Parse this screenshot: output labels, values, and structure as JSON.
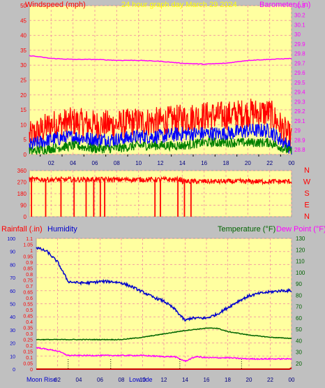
{
  "header": {
    "left_title": "Windspeed (mph)",
    "center_title": "24 hour graph day   March 29 2024",
    "right_title": "Barometer (.in)"
  },
  "colors": {
    "bg": "#c0c0c0",
    "plot_bg": "#ffffa0",
    "grid": "#f4a0a0",
    "wind": "#ff0000",
    "gust_mid": "#0000ff",
    "wind_low": "#008000",
    "barometer": "#ff00ff",
    "humidity": "#0000cc",
    "temperature": "#006400",
    "dewpoint": "#ff00ff",
    "rain": "#cc0000",
    "title_red": "#ff0000",
    "title_yellow": "#ffff00",
    "title_magenta": "#ff00ff",
    "title_blue": "#0000cc",
    "title_green": "#006400"
  },
  "chart_data": [
    {
      "type": "line",
      "name": "wind-barometer",
      "title": "24 hour graph day   March 29 2024",
      "ylabel": "Windspeed (mph)",
      "y2label": "Barometer (.in)",
      "x_ticks": [
        "02",
        "04",
        "06",
        "08",
        "10",
        "12",
        "14",
        "16",
        "18",
        "20",
        "22",
        "00"
      ],
      "ylim": [
        0,
        50
      ],
      "y_ticks": [
        0,
        5,
        10,
        15,
        20,
        25,
        30,
        35,
        40,
        45,
        50
      ],
      "y2lim": [
        28.75,
        30.3
      ],
      "y2_ticks": [
        "28.8",
        "28.9",
        "29",
        "29.1",
        "29.2",
        "29.3",
        "29.4",
        "29.5",
        "29.6",
        "29.7",
        "29.8",
        "29.9",
        "30",
        "30.1",
        "30.2",
        "30.3"
      ],
      "series": [
        {
          "role": "gust-high",
          "hours": [
            0,
            2,
            4,
            6,
            8,
            10,
            12,
            14,
            16,
            18,
            20,
            22,
            24
          ],
          "values": [
            6,
            10,
            11,
            10,
            10,
            11,
            11,
            12,
            13,
            13,
            14,
            14,
            5
          ]
        },
        {
          "role": "gust-mid",
          "hours": [
            0,
            2,
            4,
            6,
            8,
            10,
            12,
            14,
            16,
            18,
            20,
            22,
            24
          ],
          "values": [
            3,
            5,
            6,
            5,
            5,
            6,
            6,
            7,
            7,
            7,
            8,
            8,
            2
          ]
        },
        {
          "role": "wind-low",
          "hours": [
            0,
            2,
            4,
            6,
            8,
            10,
            12,
            14,
            16,
            18,
            20,
            22,
            24
          ],
          "values": [
            1,
            2,
            3,
            2,
            2,
            3,
            3,
            3,
            4,
            4,
            4,
            4,
            1
          ]
        },
        {
          "role": "barometer",
          "hours": [
            0,
            2,
            4,
            6,
            8,
            10,
            12,
            14,
            16,
            18,
            20,
            22,
            24
          ],
          "values": [
            29.78,
            29.75,
            29.74,
            29.74,
            29.73,
            29.73,
            29.72,
            29.7,
            29.69,
            29.7,
            29.73,
            29.74,
            29.75
          ]
        }
      ]
    },
    {
      "type": "scatter",
      "name": "wind-direction",
      "y_ticks": [
        0,
        90,
        180,
        270,
        360
      ],
      "ylim": [
        0,
        360
      ],
      "compass_labels": [
        "N",
        "W",
        "S",
        "E",
        "N"
      ],
      "base_direction": 290,
      "drops_hours": [
        0.2,
        1.5,
        2.9,
        4.1,
        5.2,
        5.9,
        6.5,
        6.9,
        11.5,
        12.0,
        13.6,
        14.2,
        14.8
      ]
    },
    {
      "type": "line",
      "name": "rain-humidity-temperature",
      "ylabel": "Rainfall (.in)",
      "ylabel2": "Humidity",
      "y2label": "Temperature (°F)",
      "y2label2": "Dew Point (°F)",
      "rain_ticks": [
        "0",
        "0.05",
        "0.1",
        "0.15",
        "0.2",
        "0.25",
        "0.3",
        "0.35",
        "0.4",
        "0.45",
        "0.5",
        "0.55",
        "0.6",
        "0.65",
        "0.7",
        "0.75",
        "0.8",
        "0.85",
        "0.9",
        "0.95",
        "1",
        "1.05",
        "1.1"
      ],
      "rain_lim": [
        0,
        1.1
      ],
      "humidity_ticks": [
        0,
        10,
        20,
        30,
        40,
        50,
        60,
        70,
        80,
        90,
        100
      ],
      "humidity_lim": [
        0,
        100
      ],
      "temp_ticks": [
        20,
        30,
        40,
        50,
        60,
        70,
        80,
        90,
        100,
        110,
        120,
        130
      ],
      "temp_lim": [
        15,
        130
      ],
      "x_ticks": [
        "02",
        "04",
        "06",
        "08",
        "10",
        "12",
        "14",
        "16",
        "18",
        "20",
        "22",
        "00"
      ],
      "events": [
        "Moon Rise",
        "Low tide"
      ],
      "series": [
        {
          "role": "humidity",
          "hours": [
            0,
            1,
            2,
            3,
            4,
            5,
            6,
            7,
            8,
            9,
            10,
            11,
            12,
            13,
            14,
            14.5,
            15,
            16,
            17,
            18,
            19,
            20,
            21,
            22,
            23,
            24
          ],
          "values": [
            93,
            90,
            82,
            67,
            66,
            66,
            67,
            67,
            66,
            63,
            59,
            55,
            52,
            46,
            37,
            39,
            39,
            39,
            42,
            47,
            52,
            56,
            58,
            59,
            60,
            60
          ]
        },
        {
          "role": "temperature",
          "hours": [
            0,
            2,
            4,
            6,
            8,
            10,
            12,
            14,
            16,
            17,
            18,
            20,
            22,
            24
          ],
          "values": [
            41,
            41,
            41,
            41,
            41,
            43,
            46,
            49,
            51,
            51,
            48,
            45,
            43,
            42
          ]
        },
        {
          "role": "dewpoint",
          "hours": [
            0,
            2,
            3,
            4,
            6,
            8,
            10,
            12,
            13,
            14,
            15,
            16,
            18,
            20,
            22,
            24
          ],
          "values": [
            34,
            31,
            27,
            27,
            27,
            27,
            27,
            26,
            26,
            22,
            26,
            25,
            25,
            24,
            24,
            24
          ]
        },
        {
          "role": "rainfall",
          "hours": [
            0,
            23.8,
            24
          ],
          "values": [
            0,
            0,
            0.01
          ]
        }
      ]
    }
  ]
}
